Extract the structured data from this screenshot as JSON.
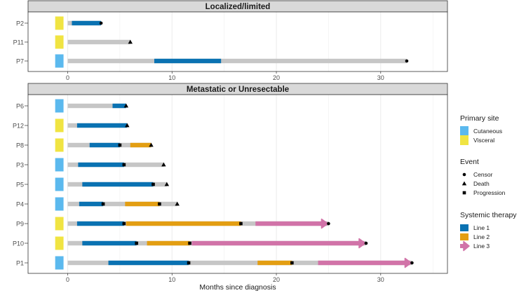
{
  "colors": {
    "cutaneous": "#5BB9EE",
    "visceral": "#F0E442",
    "off_therapy": "#C6C6C6",
    "line1": "#0A72B2",
    "line2": "#E39E12",
    "line3": "#D173A8",
    "grid": "#EBEBEB",
    "strip_bg": "#D9D9D9"
  },
  "chart_data": {
    "type": "swimmer",
    "xlabel": "Months since diagnosis",
    "xlim": [
      -3.8,
      36.4
    ],
    "xticks": [
      0,
      10,
      20,
      30
    ],
    "panels": [
      {
        "title": "Localized/limited",
        "patients": [
          {
            "id": "P2",
            "site": "Visceral",
            "total": 3.2,
            "event": "Censor",
            "event_x": 3.2,
            "lines": [
              {
                "line": 1,
                "start": 0.4,
                "end": 3.2
              }
            ],
            "progressions": []
          },
          {
            "id": "P11",
            "site": "Visceral",
            "total": 6.0,
            "event": "Death",
            "event_x": 6.0,
            "lines": [],
            "progressions": []
          },
          {
            "id": "P7",
            "site": "Cutaneous",
            "total": 32.5,
            "event": "Censor",
            "event_x": 32.5,
            "lines": [
              {
                "line": 1,
                "start": 8.3,
                "end": 14.7
              }
            ],
            "progressions": []
          }
        ]
      },
      {
        "title": "Metastatic or Unresectable",
        "patients": [
          {
            "id": "P6",
            "site": "Cutaneous",
            "total": 5.6,
            "event": "Death",
            "event_x": 5.6,
            "lines": [
              {
                "line": 1,
                "start": 4.3,
                "end": 5.6
              }
            ],
            "progressions": []
          },
          {
            "id": "P12",
            "site": "Visceral",
            "total": 5.7,
            "event": "Death",
            "event_x": 5.7,
            "lines": [
              {
                "line": 1,
                "start": 0.9,
                "end": 5.7
              }
            ],
            "progressions": []
          },
          {
            "id": "P8",
            "site": "Visceral",
            "total": 8.0,
            "event": "Death",
            "event_x": 8.0,
            "lines": [
              {
                "line": 1,
                "start": 2.1,
                "end": 5.0
              },
              {
                "line": 2,
                "start": 6.0,
                "end": 8.0
              }
            ],
            "progressions": [
              5.0
            ]
          },
          {
            "id": "P3",
            "site": "Cutaneous",
            "total": 9.2,
            "event": "Death",
            "event_x": 9.2,
            "lines": [
              {
                "line": 1,
                "start": 1.0,
                "end": 5.4
              }
            ],
            "progressions": [
              5.4
            ]
          },
          {
            "id": "P5",
            "site": "Cutaneous",
            "total": 9.5,
            "event": "Death",
            "event_x": 9.5,
            "lines": [
              {
                "line": 1,
                "start": 1.4,
                "end": 8.2
              }
            ],
            "progressions": [
              8.2
            ]
          },
          {
            "id": "P4",
            "site": "Cutaneous",
            "total": 10.5,
            "event": "Death",
            "event_x": 10.5,
            "lines": [
              {
                "line": 1,
                "start": 1.1,
                "end": 3.4
              },
              {
                "line": 2,
                "start": 5.5,
                "end": 8.8
              }
            ],
            "progressions": [
              3.4,
              8.8
            ]
          },
          {
            "id": "P9",
            "site": "Visceral",
            "total": 25.0,
            "event": "Censor",
            "event_x": 25.0,
            "lines": [
              {
                "line": 1,
                "start": 0.9,
                "end": 5.4
              },
              {
                "line": 2,
                "start": 5.6,
                "end": 16.6
              },
              {
                "line": 3,
                "start": 18.0,
                "end": 24.8
              }
            ],
            "progressions": [
              5.4,
              16.6
            ]
          },
          {
            "id": "P10",
            "site": "Visceral",
            "total": 28.6,
            "event": "Censor",
            "event_x": 28.6,
            "lines": [
              {
                "line": 1,
                "start": 1.4,
                "end": 6.6
              },
              {
                "line": 2,
                "start": 7.6,
                "end": 11.7
              },
              {
                "line": 3,
                "start": 11.9,
                "end": 28.4
              }
            ],
            "progressions": [
              6.6,
              11.7
            ]
          },
          {
            "id": "P1",
            "site": "Cutaneous",
            "total": 33.0,
            "event": "Censor",
            "event_x": 33.0,
            "lines": [
              {
                "line": 1,
                "start": 3.9,
                "end": 11.6
              },
              {
                "line": 2,
                "start": 18.2,
                "end": 21.5
              },
              {
                "line": 3,
                "start": 24.0,
                "end": 32.8
              }
            ],
            "progressions": [
              11.6,
              21.5
            ]
          }
        ]
      }
    ],
    "legend": {
      "placement": "right",
      "groups": [
        {
          "title": "Primary site",
          "items": [
            {
              "label": "Cutaneous",
              "key": "cutaneous"
            },
            {
              "label": "Visceral",
              "key": "visceral"
            }
          ]
        },
        {
          "title": "Event",
          "items": [
            {
              "label": "Censor",
              "key": "censor"
            },
            {
              "label": "Death",
              "key": "death"
            },
            {
              "label": "Progression",
              "key": "progression"
            }
          ]
        },
        {
          "title": "Systemic therapy",
          "items": [
            {
              "label": "Line 1",
              "key": "line1"
            },
            {
              "label": "Line 2",
              "key": "line2"
            },
            {
              "label": "Line 3",
              "key": "line3"
            }
          ]
        }
      ]
    }
  }
}
